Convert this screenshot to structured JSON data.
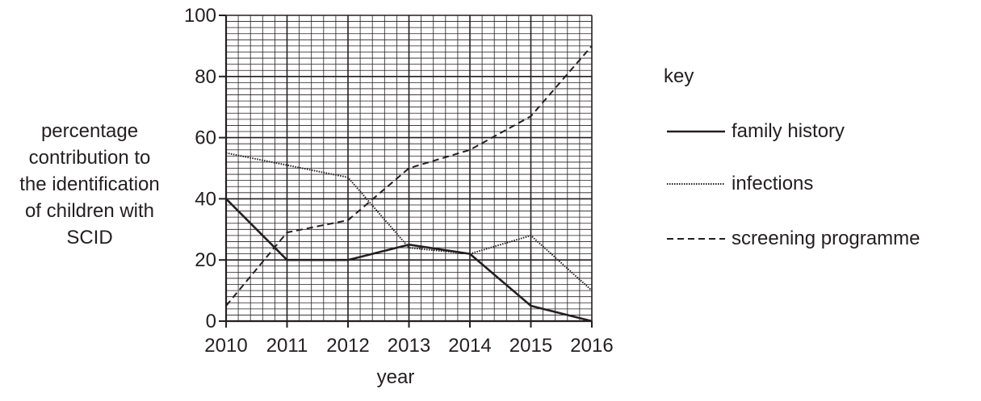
{
  "chart_data": {
    "type": "line",
    "ylabel_lines": [
      "percentage",
      "contribution to",
      "the identification",
      "of children with",
      "SCID"
    ],
    "xlabel": "year",
    "x": [
      2010,
      2011,
      2012,
      2013,
      2014,
      2015,
      2016
    ],
    "xlim": [
      2010,
      2016
    ],
    "ylim": [
      0,
      100
    ],
    "yticks": [
      0,
      20,
      40,
      60,
      80,
      100
    ],
    "grid": "fine grid every 2 units on y, every 0.2 year on x; bold lines every 20 units and every year",
    "series": [
      {
        "name": "family history",
        "style": "solid",
        "values": [
          40,
          20,
          20,
          25,
          22,
          5,
          0
        ]
      },
      {
        "name": "infections",
        "style": "dotted",
        "values": [
          55,
          51,
          47,
          24,
          22,
          28,
          10
        ]
      },
      {
        "name": "screening programme",
        "style": "dashed",
        "values": [
          5,
          29,
          33,
          50,
          56,
          67,
          90
        ]
      }
    ],
    "legend": {
      "title": "key",
      "position": "right"
    },
    "colors": {
      "line": "#231f20",
      "grid": "#231f20"
    }
  }
}
